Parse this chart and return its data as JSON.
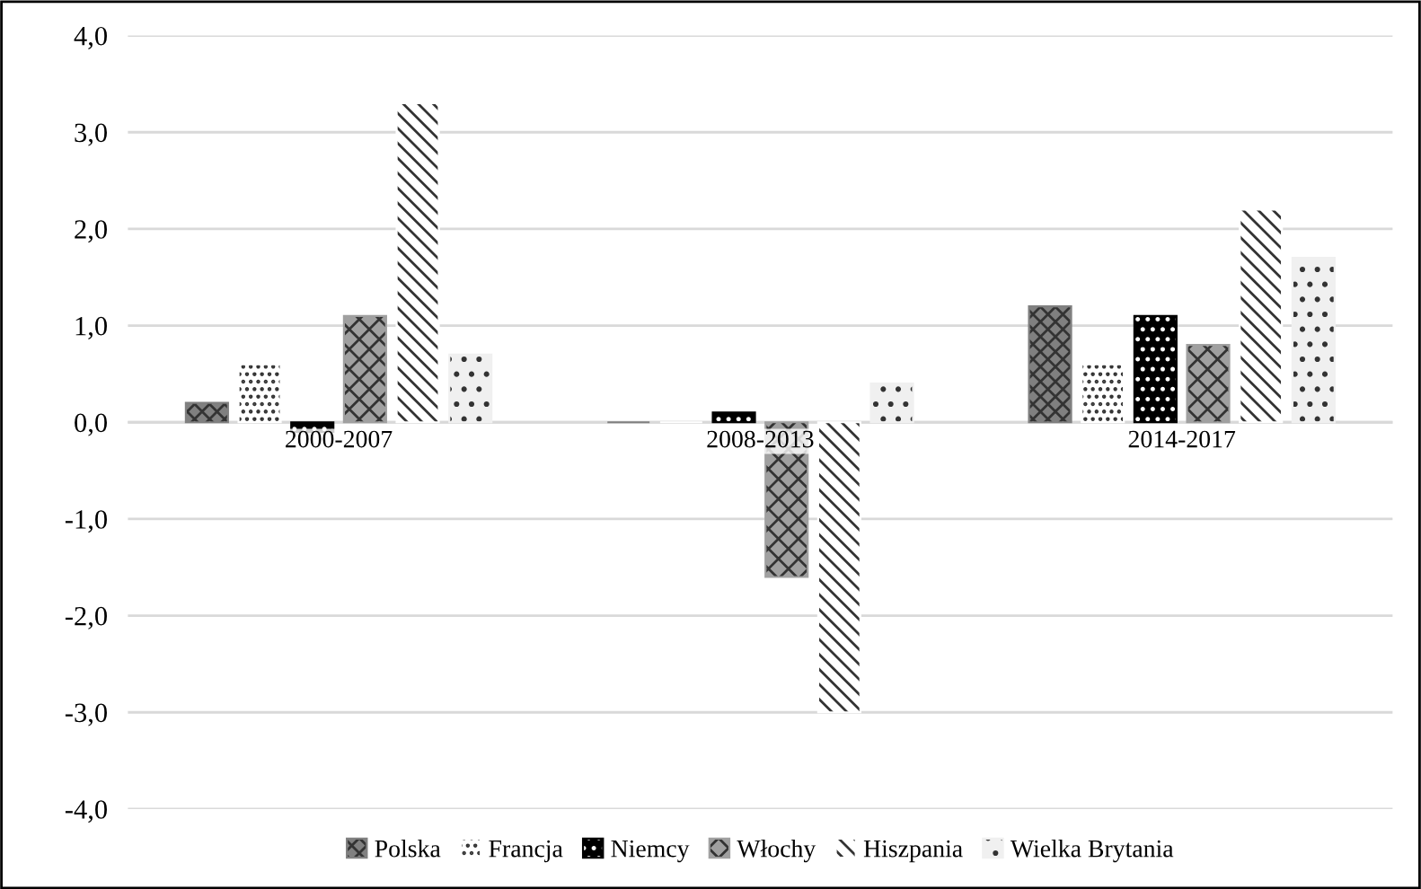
{
  "chart_data": {
    "type": "bar",
    "categories": [
      "2000-2007",
      "2008-2013",
      "2014-2017"
    ],
    "series": [
      {
        "name": "Polska",
        "color": "#808080",
        "values": [
          0.2,
          0.0,
          1.2
        ]
      },
      {
        "name": "Francja",
        "color": "#ffffff",
        "values": [
          0.6,
          0.0,
          0.6
        ]
      },
      {
        "name": "Niemcy",
        "color": "#000000",
        "values": [
          -0.1,
          0.1,
          1.1
        ]
      },
      {
        "name": "Włochy",
        "color": "#a0a0a0",
        "values": [
          1.1,
          -1.6,
          0.8
        ]
      },
      {
        "name": "Hiszpania",
        "color": "#ffffff",
        "values": [
          3.3,
          -3.0,
          2.2
        ]
      },
      {
        "name": "Wielka Brytania",
        "color": "#f0f0f0",
        "values": [
          0.7,
          0.4,
          1.7
        ]
      }
    ],
    "ylim": [
      -4.0,
      4.0
    ],
    "yticks": [
      {
        "value": -4,
        "label": "-4,0"
      },
      {
        "value": -3,
        "label": "-3,0"
      },
      {
        "value": -2,
        "label": "-2,0"
      },
      {
        "value": -1,
        "label": "-1,0"
      },
      {
        "value": 0,
        "label": "0,0"
      },
      {
        "value": 1,
        "label": "1,0"
      },
      {
        "value": 2,
        "label": "2,0"
      },
      {
        "value": 3,
        "label": "3,0"
      },
      {
        "value": 4,
        "label": "4,0"
      }
    ],
    "grid": "y",
    "legend": "bottom"
  }
}
